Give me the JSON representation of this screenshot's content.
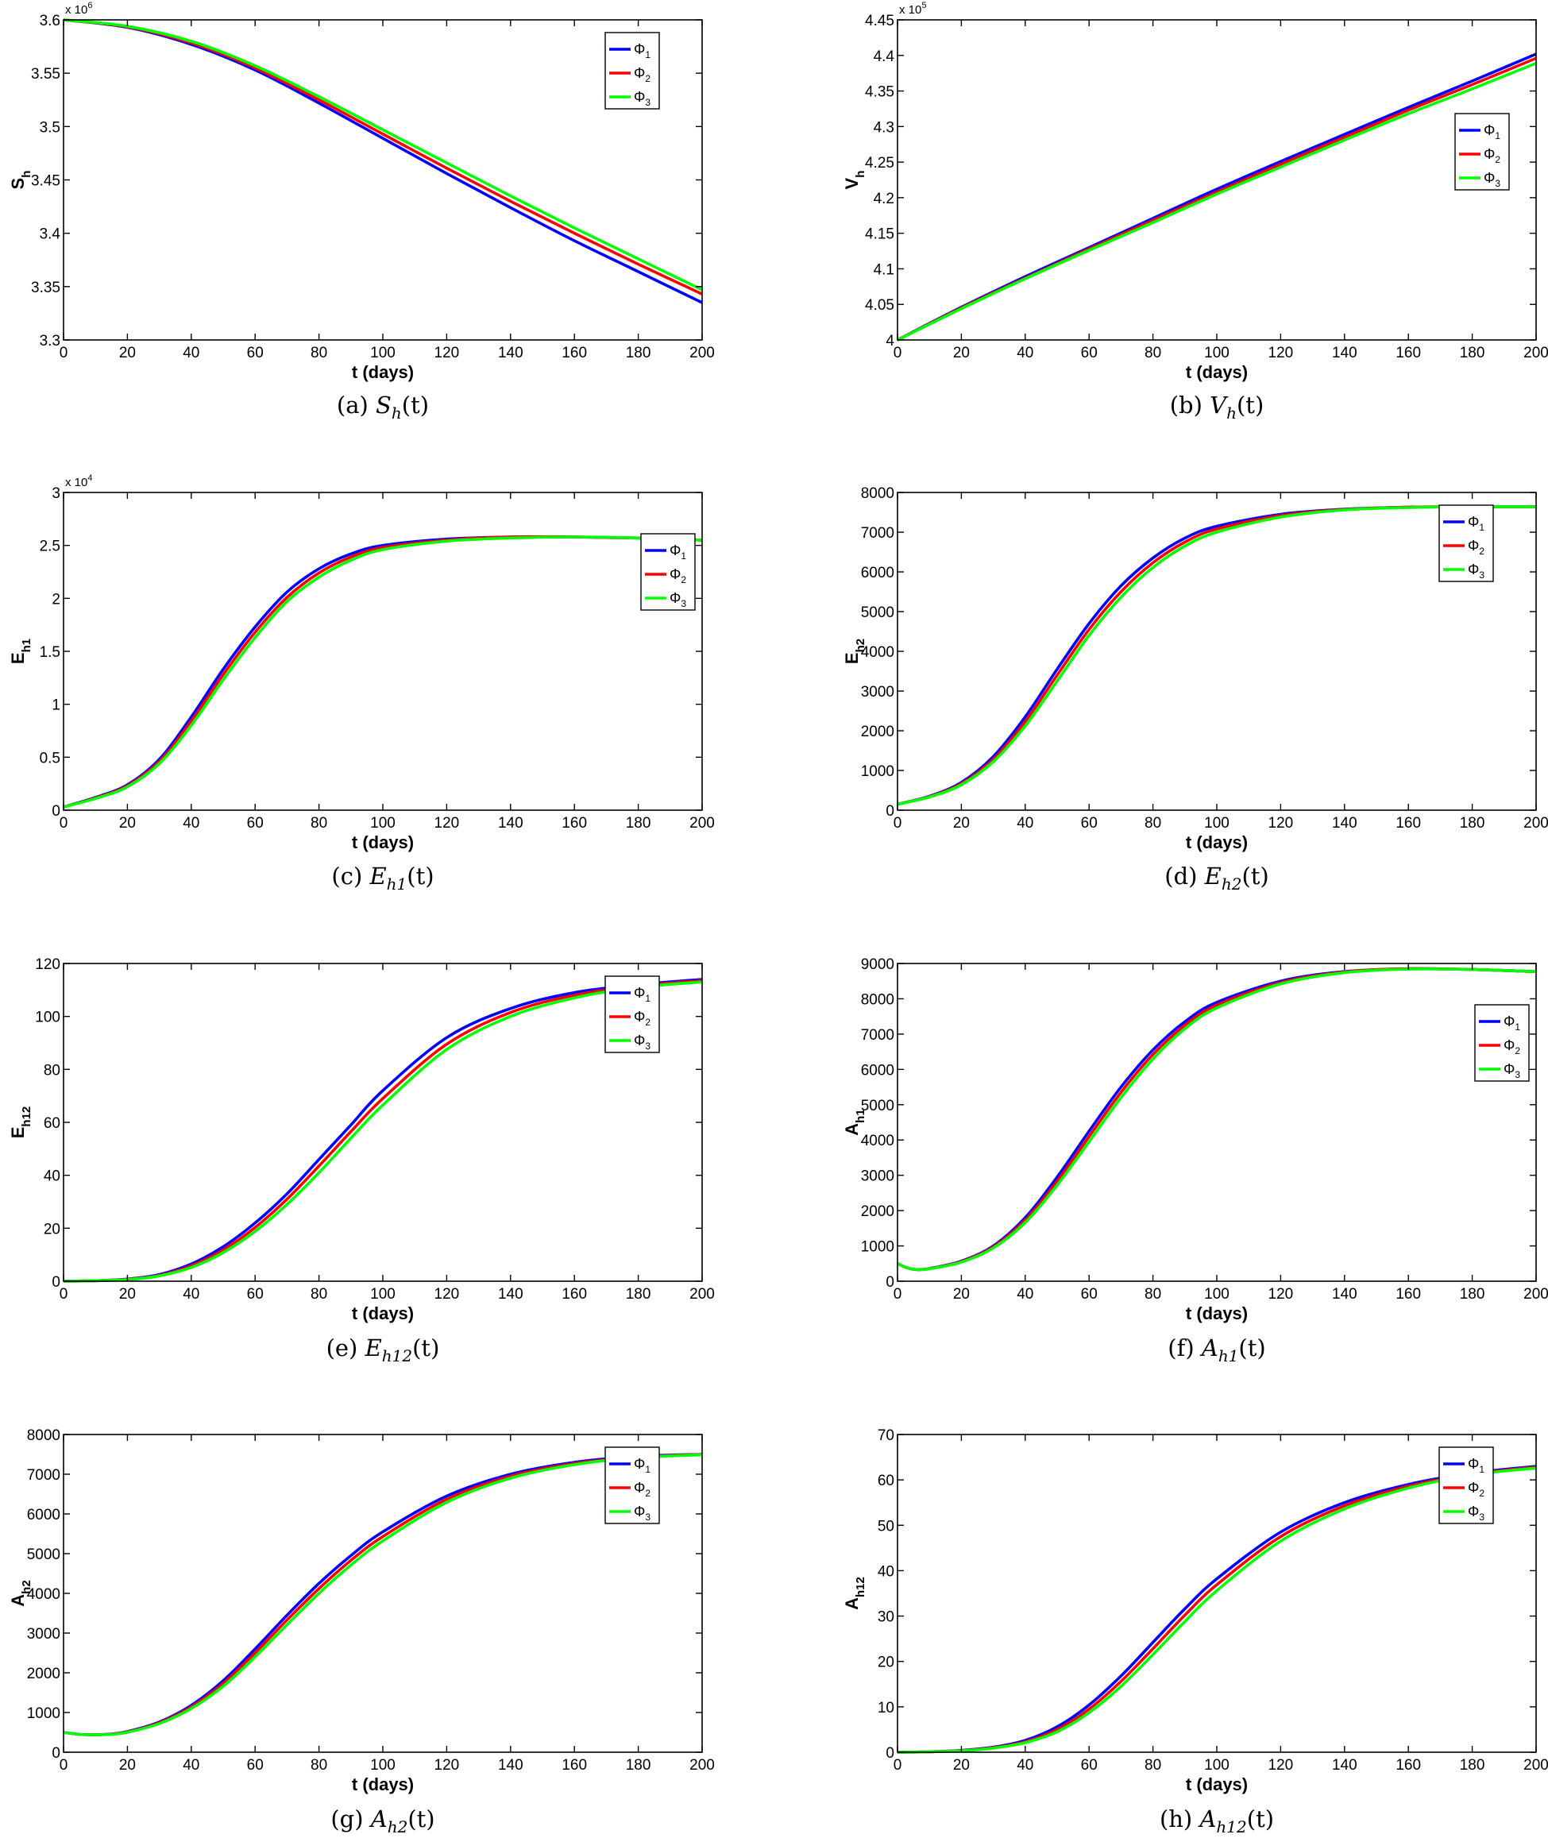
{
  "colors": {
    "phi1": "#0000ff",
    "phi2": "#ff0000",
    "phi3": "#00ff00"
  },
  "xlabel": "t (days)",
  "chart_data": [
    {
      "id": "a",
      "type": "line",
      "caption_prefix": "(a)",
      "caption_var": "S",
      "caption_sub": "h",
      "caption_arg": "(t)",
      "ylabel_main": "S",
      "ylabel_sub": "h",
      "exponent_base": "x 10",
      "exponent_pow": "6",
      "xlim": [
        0,
        200
      ],
      "ylim": [
        3.3,
        3.6
      ],
      "yscale": 1000000,
      "xticks": [
        "0",
        "20",
        "40",
        "60",
        "80",
        "100",
        "120",
        "140",
        "160",
        "180",
        "200"
      ],
      "yticks": [
        "3.3",
        "3.35",
        "3.4",
        "3.45",
        "3.5",
        "3.55",
        "3.6"
      ],
      "legend_pos": "top-right",
      "x": [
        0,
        20,
        40,
        60,
        80,
        100,
        120,
        140,
        160,
        180,
        200
      ],
      "series": [
        {
          "name": "Φ1",
          "values": [
            3600000,
            3593000,
            3577000,
            3553000,
            3522000,
            3489000,
            3456000,
            3424000,
            3393000,
            3364000,
            3335000
          ]
        },
        {
          "name": "Φ2",
          "values": [
            3600000,
            3593500,
            3578500,
            3555000,
            3525000,
            3493000,
            3461000,
            3430000,
            3400000,
            3371000,
            3343000
          ]
        },
        {
          "name": "Φ3",
          "values": [
            3600000,
            3594000,
            3580000,
            3557000,
            3528000,
            3497000,
            3466000,
            3435000,
            3405000,
            3376000,
            3347000
          ]
        }
      ]
    },
    {
      "id": "b",
      "type": "line",
      "caption_prefix": "(b)",
      "caption_var": "V",
      "caption_sub": "h",
      "caption_arg": "(t)",
      "ylabel_main": "V",
      "ylabel_sub": "h",
      "exponent_base": "x 10",
      "exponent_pow": "5",
      "xlim": [
        0,
        200
      ],
      "ylim": [
        4.0,
        4.45
      ],
      "yscale": 100000,
      "xticks": [
        "0",
        "20",
        "40",
        "60",
        "80",
        "100",
        "120",
        "140",
        "160",
        "180",
        "200"
      ],
      "yticks": [
        "4",
        "4.05",
        "4.1",
        "4.15",
        "4.2",
        "4.25",
        "4.3",
        "4.35",
        "4.4",
        "4.45"
      ],
      "legend_pos": "upper-right",
      "x": [
        0,
        20,
        40,
        60,
        80,
        100,
        120,
        140,
        160,
        180,
        200
      ],
      "series": [
        {
          "name": "Φ1",
          "values": [
            400000,
            404600,
            408900,
            413000,
            417100,
            421200,
            425100,
            428900,
            432700,
            436400,
            440200
          ]
        },
        {
          "name": "Φ2",
          "values": [
            400000,
            404500,
            408700,
            412800,
            416800,
            420800,
            424700,
            428500,
            432300,
            435900,
            439600
          ]
        },
        {
          "name": "Φ3",
          "values": [
            400000,
            404400,
            408600,
            412600,
            416500,
            420500,
            424300,
            428100,
            431800,
            435300,
            438900
          ]
        }
      ]
    },
    {
      "id": "c",
      "type": "line",
      "caption_prefix": "(c)",
      "caption_var": "E",
      "caption_sub": "h1",
      "caption_arg": "(t)",
      "ylabel_main": "E",
      "ylabel_sub": "h1",
      "exponent_base": "x 10",
      "exponent_pow": "4",
      "xlim": [
        0,
        200
      ],
      "ylim": [
        0,
        3
      ],
      "yscale": 10000,
      "xticks": [
        "0",
        "20",
        "40",
        "60",
        "80",
        "100",
        "120",
        "140",
        "160",
        "180",
        "200"
      ],
      "yticks": [
        "0",
        "0.5",
        "1",
        "1.5",
        "2",
        "2.5",
        "3"
      ],
      "legend_pos": "right",
      "x": [
        0,
        10,
        20,
        30,
        40,
        50,
        60,
        70,
        80,
        90,
        100,
        120,
        140,
        160,
        180,
        200
      ],
      "series": [
        {
          "name": "Φ1",
          "values": [
            300,
            1200,
            2400,
            4800,
            8800,
            13300,
            17300,
            20600,
            22800,
            24200,
            25000,
            25600,
            25800,
            25800,
            25700,
            25500
          ]
        },
        {
          "name": "Φ2",
          "values": [
            300,
            1150,
            2300,
            4600,
            8400,
            12800,
            16800,
            20100,
            22400,
            23900,
            24800,
            25500,
            25800,
            25800,
            25700,
            25500
          ]
        },
        {
          "name": "Φ3",
          "values": [
            300,
            1100,
            2200,
            4400,
            8000,
            12300,
            16300,
            19700,
            22000,
            23600,
            24600,
            25400,
            25700,
            25800,
            25700,
            25500
          ]
        }
      ]
    },
    {
      "id": "d",
      "type": "line",
      "caption_prefix": "(d)",
      "caption_var": "E",
      "caption_sub": "h2",
      "caption_arg": "(t)",
      "ylabel_main": "E",
      "ylabel_sub": "h2",
      "exponent_base": "",
      "exponent_pow": "",
      "xlim": [
        0,
        200
      ],
      "ylim": [
        0,
        8000
      ],
      "yscale": 1,
      "xticks": [
        "0",
        "20",
        "40",
        "60",
        "80",
        "100",
        "120",
        "140",
        "160",
        "180",
        "200"
      ],
      "yticks": [
        "0",
        "1000",
        "2000",
        "3000",
        "4000",
        "5000",
        "6000",
        "7000",
        "8000"
      ],
      "legend_pos": "top-right",
      "x": [
        0,
        10,
        20,
        30,
        40,
        50,
        60,
        70,
        80,
        90,
        100,
        120,
        140,
        160,
        180,
        200
      ],
      "series": [
        {
          "name": "Φ1",
          "values": [
            150,
            350,
            700,
            1350,
            2350,
            3550,
            4700,
            5650,
            6350,
            6850,
            7150,
            7450,
            7580,
            7630,
            7640,
            7640
          ]
        },
        {
          "name": "Φ2",
          "values": [
            150,
            340,
            670,
            1280,
            2230,
            3400,
            4550,
            5500,
            6230,
            6750,
            7080,
            7420,
            7570,
            7630,
            7640,
            7640
          ]
        },
        {
          "name": "Φ3",
          "values": [
            150,
            330,
            640,
            1220,
            2120,
            3250,
            4400,
            5360,
            6110,
            6650,
            7000,
            7380,
            7560,
            7620,
            7640,
            7640
          ]
        }
      ]
    },
    {
      "id": "e",
      "type": "line",
      "caption_prefix": "(e)",
      "caption_var": "E",
      "caption_sub": "h12",
      "caption_arg": "(t)",
      "ylabel_main": "E",
      "ylabel_sub": "h12",
      "exponent_base": "",
      "exponent_pow": "",
      "xlim": [
        0,
        200
      ],
      "ylim": [
        0,
        120
      ],
      "yscale": 1,
      "xticks": [
        "0",
        "20",
        "40",
        "60",
        "80",
        "100",
        "120",
        "140",
        "160",
        "180",
        "200"
      ],
      "yticks": [
        "0",
        "20",
        "40",
        "60",
        "80",
        "100",
        "120"
      ],
      "legend_pos": "top-right",
      "x": [
        0,
        10,
        20,
        30,
        40,
        50,
        60,
        70,
        80,
        90,
        100,
        120,
        140,
        160,
        180,
        200
      ],
      "series": [
        {
          "name": "Φ1",
          "values": [
            0,
            0.2,
            0.8,
            2.5,
            6.5,
            13,
            22,
            33,
            46,
            59,
            72,
            92,
            103,
            109,
            112,
            114
          ]
        },
        {
          "name": "Φ2",
          "values": [
            0,
            0.2,
            0.7,
            2.2,
            5.8,
            11.8,
            20.3,
            31,
            43.5,
            56.5,
            69,
            89.5,
            101.5,
            108,
            111.5,
            113.5
          ]
        },
        {
          "name": "Φ3",
          "values": [
            0,
            0.2,
            0.6,
            2.0,
            5.2,
            10.8,
            18.8,
            29,
            41,
            54,
            66.5,
            87.5,
            100,
            107,
            111,
            113
          ]
        }
      ]
    },
    {
      "id": "f",
      "type": "line",
      "caption_prefix": "(f)",
      "caption_var": "A",
      "caption_sub": "h1",
      "caption_arg": "(t)",
      "ylabel_main": "A",
      "ylabel_sub": "h1",
      "exponent_base": "",
      "exponent_pow": "",
      "xlim": [
        0,
        200
      ],
      "ylim": [
        0,
        9000
      ],
      "yscale": 1,
      "xticks": [
        "0",
        "20",
        "40",
        "60",
        "80",
        "100",
        "120",
        "140",
        "160",
        "180",
        "200"
      ],
      "yticks": [
        "0",
        "1000",
        "2000",
        "3000",
        "4000",
        "5000",
        "6000",
        "7000",
        "8000",
        "9000"
      ],
      "legend_pos": "right",
      "x": [
        0,
        3,
        6,
        10,
        20,
        30,
        40,
        50,
        60,
        70,
        80,
        90,
        100,
        120,
        140,
        160,
        180,
        200
      ],
      "series": [
        {
          "name": "Φ1",
          "values": [
            500,
            380,
            330,
            360,
            570,
            1000,
            1800,
            2950,
            4250,
            5500,
            6550,
            7350,
            7900,
            8500,
            8770,
            8850,
            8830,
            8770
          ]
        },
        {
          "name": "Φ2",
          "values": [
            500,
            380,
            330,
            355,
            555,
            970,
            1730,
            2830,
            4100,
            5350,
            6420,
            7250,
            7820,
            8460,
            8760,
            8850,
            8830,
            8770
          ]
        },
        {
          "name": "Φ3",
          "values": [
            500,
            380,
            330,
            350,
            540,
            940,
            1660,
            2720,
            3950,
            5200,
            6290,
            7150,
            7740,
            8420,
            8740,
            8840,
            8830,
            8770
          ]
        }
      ]
    },
    {
      "id": "g",
      "type": "line",
      "caption_prefix": "(g)",
      "caption_var": "A",
      "caption_sub": "h2",
      "caption_arg": "(t)",
      "ylabel_main": "A",
      "ylabel_sub": "h2",
      "exponent_base": "",
      "exponent_pow": "",
      "xlim": [
        0,
        200
      ],
      "ylim": [
        0,
        8000
      ],
      "yscale": 1,
      "xticks": [
        "0",
        "20",
        "40",
        "60",
        "80",
        "100",
        "120",
        "140",
        "160",
        "180",
        "200"
      ],
      "yticks": [
        "0",
        "1000",
        "2000",
        "3000",
        "4000",
        "5000",
        "6000",
        "7000",
        "8000"
      ],
      "legend_pos": "top-right",
      "x": [
        0,
        5,
        10,
        15,
        20,
        30,
        40,
        50,
        60,
        70,
        80,
        90,
        100,
        120,
        140,
        160,
        180,
        200
      ],
      "series": [
        {
          "name": "Φ1",
          "values": [
            500,
            450,
            440,
            460,
            520,
            760,
            1180,
            1800,
            2600,
            3450,
            4250,
            4950,
            5550,
            6450,
            7000,
            7300,
            7450,
            7500
          ]
        },
        {
          "name": "Φ2",
          "values": [
            500,
            450,
            440,
            455,
            510,
            740,
            1140,
            1730,
            2500,
            3330,
            4120,
            4830,
            5430,
            6370,
            6950,
            7270,
            7430,
            7500
          ]
        },
        {
          "name": "Φ3",
          "values": [
            500,
            450,
            440,
            450,
            500,
            720,
            1100,
            1660,
            2400,
            3210,
            4000,
            4710,
            5320,
            6290,
            6900,
            7240,
            7420,
            7490
          ]
        }
      ]
    },
    {
      "id": "h",
      "type": "line",
      "caption_prefix": "(h)",
      "caption_var": "A",
      "caption_sub": "h12",
      "caption_arg": "(t)",
      "ylabel_main": "A",
      "ylabel_sub": "h12",
      "exponent_base": "",
      "exponent_pow": "",
      "xlim": [
        0,
        200
      ],
      "ylim": [
        0,
        70
      ],
      "yscale": 1,
      "xticks": [
        "0",
        "20",
        "40",
        "60",
        "80",
        "100",
        "120",
        "140",
        "160",
        "180",
        "200"
      ],
      "yticks": [
        "0",
        "10",
        "20",
        "30",
        "40",
        "50",
        "60",
        "70"
      ],
      "legend_pos": "top-right",
      "x": [
        0,
        10,
        20,
        30,
        40,
        50,
        60,
        70,
        80,
        90,
        100,
        120,
        140,
        160,
        180,
        200
      ],
      "series": [
        {
          "name": "Φ1",
          "values": [
            0,
            0.1,
            0.4,
            1.1,
            2.6,
            5.6,
            10.4,
            16.8,
            24.2,
            31.6,
            38.2,
            48.5,
            55,
            59,
            61.5,
            63
          ]
        },
        {
          "name": "Φ2",
          "values": [
            0,
            0.1,
            0.35,
            1.0,
            2.3,
            5.0,
            9.5,
            15.6,
            22.8,
            30.2,
            36.9,
            47.5,
            54.3,
            58.6,
            61.3,
            62.8
          ]
        },
        {
          "name": "Φ3",
          "values": [
            0,
            0.1,
            0.3,
            0.9,
            2.1,
            4.5,
            8.7,
            14.5,
            21.5,
            28.8,
            35.6,
            46.5,
            53.6,
            58.2,
            61.1,
            62.6
          ]
        }
      ]
    }
  ]
}
